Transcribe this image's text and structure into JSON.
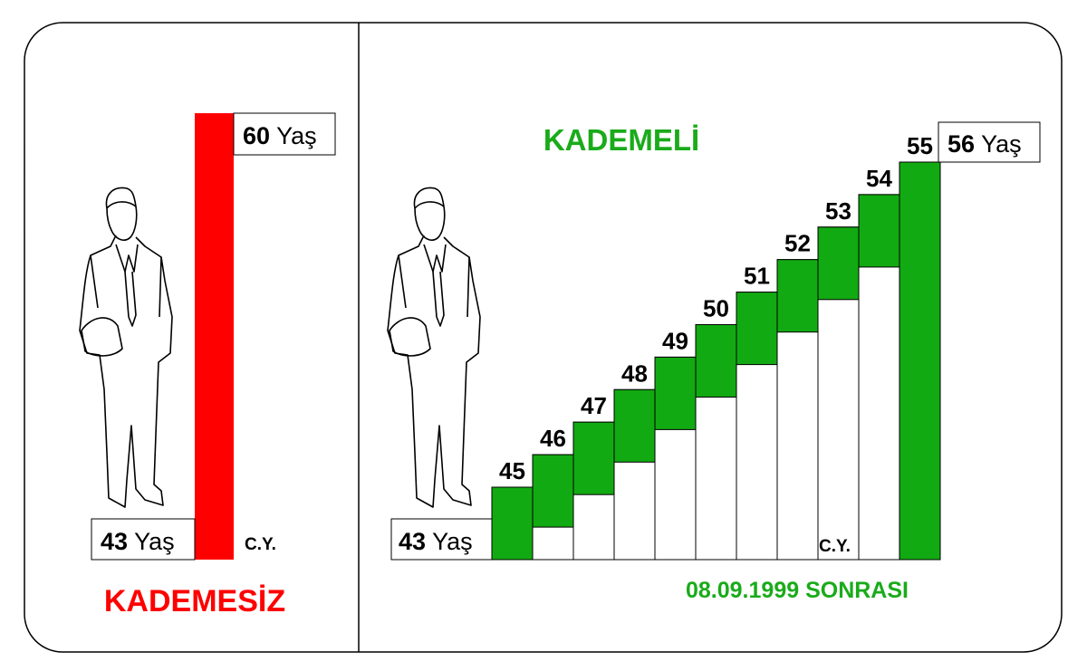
{
  "left": {
    "top_label": {
      "number": "60",
      "unit": "Yaş"
    },
    "bottom_label": {
      "number": "43",
      "unit": "Yaş"
    },
    "marker": "C.Y.",
    "title": "KADEMESİZ"
  },
  "right": {
    "title": "KADEMELİ",
    "steps": [
      "45",
      "46",
      "47",
      "48",
      "49",
      "50",
      "51",
      "52",
      "53",
      "54",
      "55"
    ],
    "top_label": {
      "number": "56",
      "unit": "Yaş"
    },
    "bottom_label": {
      "number": "43",
      "unit": "Yaş"
    },
    "marker": "C.Y.",
    "caption": "08.09.1999 SONRASI"
  }
}
